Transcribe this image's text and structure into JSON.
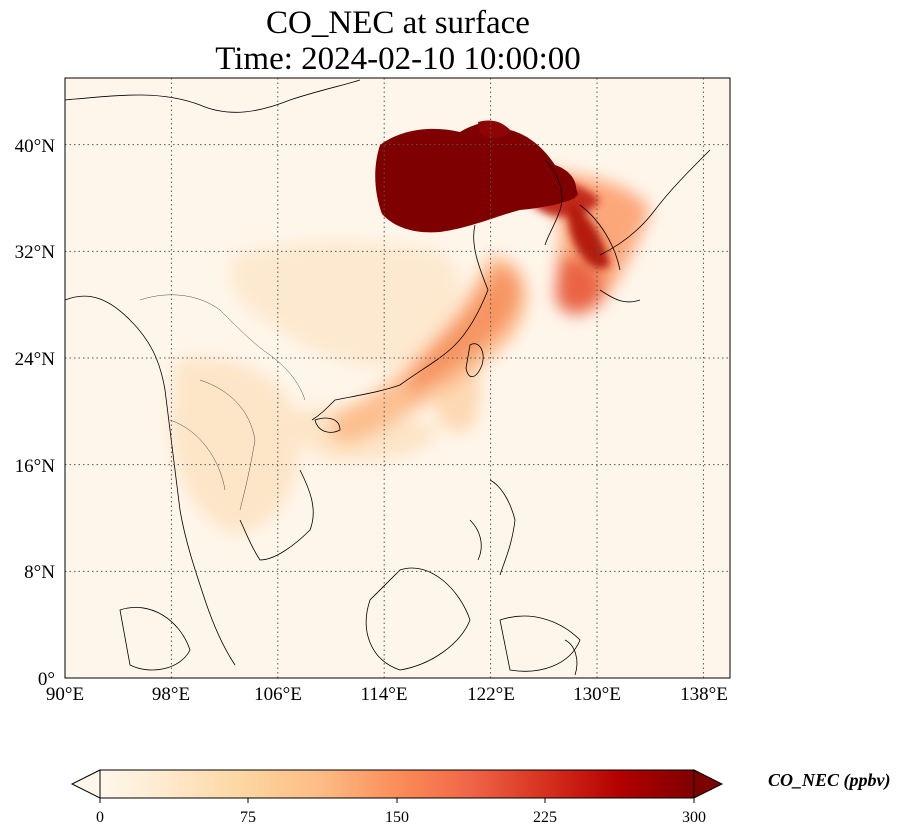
{
  "title_line1": "CO_NEC at surface",
  "title_line2": "Time: 2024-02-10 10:00:00",
  "map": {
    "lon_range": [
      90,
      140
    ],
    "lat_range": [
      0,
      45
    ],
    "lon_ticks": [
      "90°E",
      "98°E",
      "106°E",
      "114°E",
      "122°E",
      "130°E",
      "138°E"
    ],
    "lat_ticks": [
      "0°",
      "8°N",
      "16°N",
      "24°N",
      "32°N",
      "40°N"
    ],
    "colormap": "OrRd"
  },
  "colorbar": {
    "label": "CO_NEC (ppbv)",
    "range": [
      0,
      300
    ],
    "ticks": [
      "0",
      "75",
      "150",
      "225",
      "300"
    ],
    "extend": "both",
    "colors": [
      "#fff7ec",
      "#fee8c8",
      "#fdd49e",
      "#fdbb84",
      "#fc8d59",
      "#ef6548",
      "#d7301f",
      "#b30000",
      "#7f0000"
    ]
  }
}
